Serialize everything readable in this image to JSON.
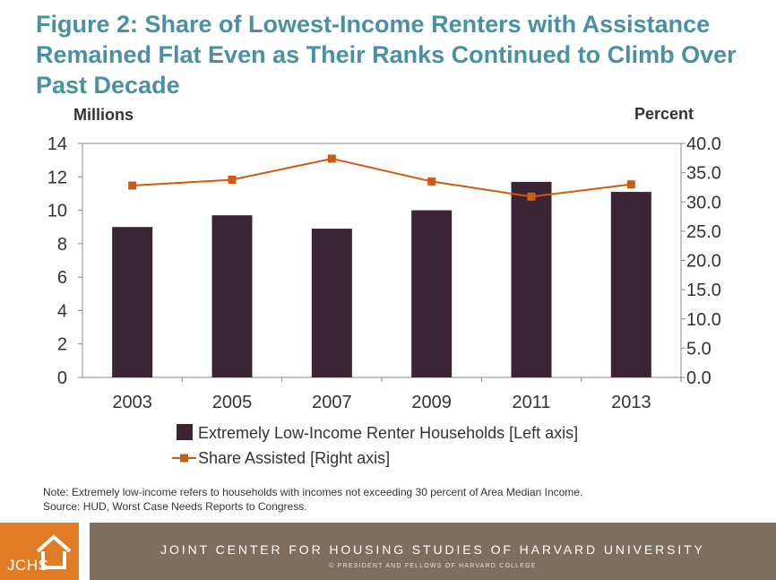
{
  "title": "Figure 2: Share of Lowest-Income Renters with Assistance Remained Flat Even as Their Ranks Continued to Climb Over Past Decade",
  "note": "Note: Extremely low-income refers to households with incomes not exceeding 30 percent of Area Median Income.",
  "source": "Source: HUD, Worst Case Needs Reports to Congress.",
  "footer": {
    "logo": "JCHS",
    "main": "JOINT CENTER FOR HOUSING STUDIES OF HARVARD UNIVERSITY",
    "sub": "© PRESIDENT AND FELLOWS OF HARVARD COLLEGE"
  },
  "colors": {
    "bar": "#3b2535",
    "line": "#cf5a12",
    "title": "#4a90a4",
    "footer": "#7d6e5e",
    "logo": "#e07b26"
  },
  "chart_data": {
    "type": "bar",
    "categories": [
      "2003",
      "2005",
      "2007",
      "2009",
      "2011",
      "2013"
    ],
    "ylabel": "Millions",
    "y2label": "Percent",
    "ylim": [
      0,
      14
    ],
    "y2lim": [
      0,
      40
    ],
    "yticks": [
      "0",
      "2",
      "4",
      "6",
      "8",
      "10",
      "12",
      "14"
    ],
    "y2ticks": [
      "0.0",
      "5.0",
      "10.0",
      "15.0",
      "20.0",
      "25.0",
      "30.0",
      "35.0",
      "40.0"
    ],
    "series": [
      {
        "name": "Extremely Low-Income Renter Households [Left axis]",
        "type": "bar",
        "axis": "left",
        "values": [
          9.0,
          9.7,
          8.9,
          10.0,
          11.7,
          11.1
        ]
      },
      {
        "name": "Share Assisted [Right axis]",
        "type": "line",
        "axis": "right",
        "values": [
          32.8,
          33.8,
          37.4,
          33.5,
          30.9,
          33.0
        ]
      }
    ],
    "legend": "bottom"
  }
}
